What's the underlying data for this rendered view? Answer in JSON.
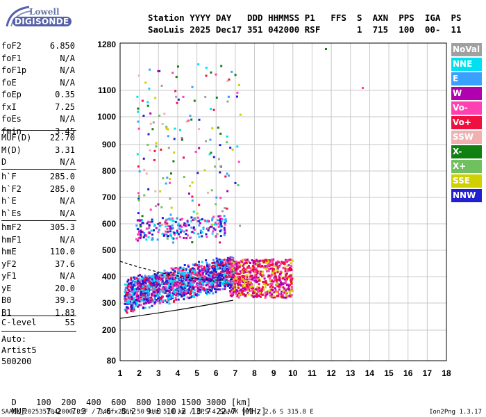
{
  "logo": {
    "brand_top": "Lowell",
    "brand_bottom": "DIGISONDE"
  },
  "header": {
    "labels": [
      "Station",
      "YYYY",
      "DAY",
      "DDD",
      "HHMMSS",
      "P1",
      "FFS",
      "S",
      "AXN",
      "PPS",
      "IGA",
      "PS"
    ],
    "line1": "Station YYYY DAY   DDD HHMMSS P1   FFS  S  AXN  PPS  IGA  PS",
    "line2": "SaoLuis 2025 Dec17 351 042000 RSF       1  715  100  00-  11"
  },
  "params_group1": [
    {
      "name": "foF2",
      "value": "6.850"
    },
    {
      "name": "foF1",
      "value": "N/A"
    },
    {
      "name": "foF1p",
      "value": "N/A"
    },
    {
      "name": "foE",
      "value": "N/A"
    },
    {
      "name": "foEp",
      "value": "0.35"
    },
    {
      "name": "fxI",
      "value": "7.25"
    },
    {
      "name": "foEs",
      "value": "N/A"
    },
    {
      "name": "fmin",
      "value": "3.45"
    }
  ],
  "params_group2": [
    {
      "name": "MUF(D)",
      "value": "22.70"
    },
    {
      "name": "M(D)",
      "value": "3.31"
    },
    {
      "name": "D",
      "value": "N/A"
    }
  ],
  "params_group3": [
    {
      "name": "h`F",
      "value": "285.0"
    },
    {
      "name": "h`F2",
      "value": "285.0"
    },
    {
      "name": "h`E",
      "value": "N/A"
    },
    {
      "name": "h`Es",
      "value": "N/A"
    }
  ],
  "params_group4": [
    {
      "name": "hmF2",
      "value": "305.3"
    },
    {
      "name": "hmF1",
      "value": "N/A"
    },
    {
      "name": "hmE",
      "value": "110.0"
    },
    {
      "name": "yF2",
      "value": "37.6"
    },
    {
      "name": "yF1",
      "value": "N/A"
    },
    {
      "name": "yE",
      "value": "20.0"
    },
    {
      "name": "B0",
      "value": "39.3"
    },
    {
      "name": "B1",
      "value": "1.83"
    }
  ],
  "params_group5": [
    {
      "name": "C-level",
      "value": "55"
    }
  ],
  "auto": {
    "line1": "Auto:",
    "line2": "Artist5",
    "line3": "500200"
  },
  "axes": {
    "y_ticks": [
      "1280",
      "1100",
      "1000",
      "900",
      "800",
      "700",
      "600",
      "500",
      "400",
      "300",
      "200",
      "80"
    ],
    "x_ticks": [
      "1",
      "2",
      "3",
      "4",
      "5",
      "6",
      "7",
      "8",
      "9",
      "10",
      "11",
      "12",
      "13",
      "14",
      "15",
      "16",
      "17",
      "18"
    ]
  },
  "legend": [
    {
      "label": "NoVal",
      "color": "#a0a0a0"
    },
    {
      "label": "NNE",
      "color": "#00e0f0"
    },
    {
      "label": "E",
      "color": "#3aa0ff"
    },
    {
      "label": "W",
      "color": "#b000b0"
    },
    {
      "label": "Vo-",
      "color": "#ff40b0"
    },
    {
      "label": "Vo+",
      "color": "#f01040"
    },
    {
      "label": "SSW",
      "color": "#f0b0b0"
    },
    {
      "label": "X-",
      "color": "#108010"
    },
    {
      "label": "X+",
      "color": "#70c060"
    },
    {
      "label": "SSE",
      "color": "#d0d000"
    },
    {
      "label": "NNW",
      "color": "#2020d0"
    }
  ],
  "bottom": {
    "d_label": "D",
    "d_values": [
      "100",
      "200",
      "400",
      "600",
      "800",
      "1000",
      "1500",
      "3000"
    ],
    "d_unit": "[km]",
    "muf_label": "MUF",
    "muf_values": [
      "7.2",
      "7.3",
      "7.6",
      "8.2",
      "9.0",
      "10.2",
      "13.7",
      "22.7"
    ],
    "muf_unit": "[MHz]"
  },
  "footer": {
    "left": "SAA0K_2025351042000.RSF / 340fx256h 50 kHz 5.0 km / DPS-4 SAA0K 903 / 2.6 S 315.8 E",
    "right": "Ion2Png 1.3.17"
  }
}
